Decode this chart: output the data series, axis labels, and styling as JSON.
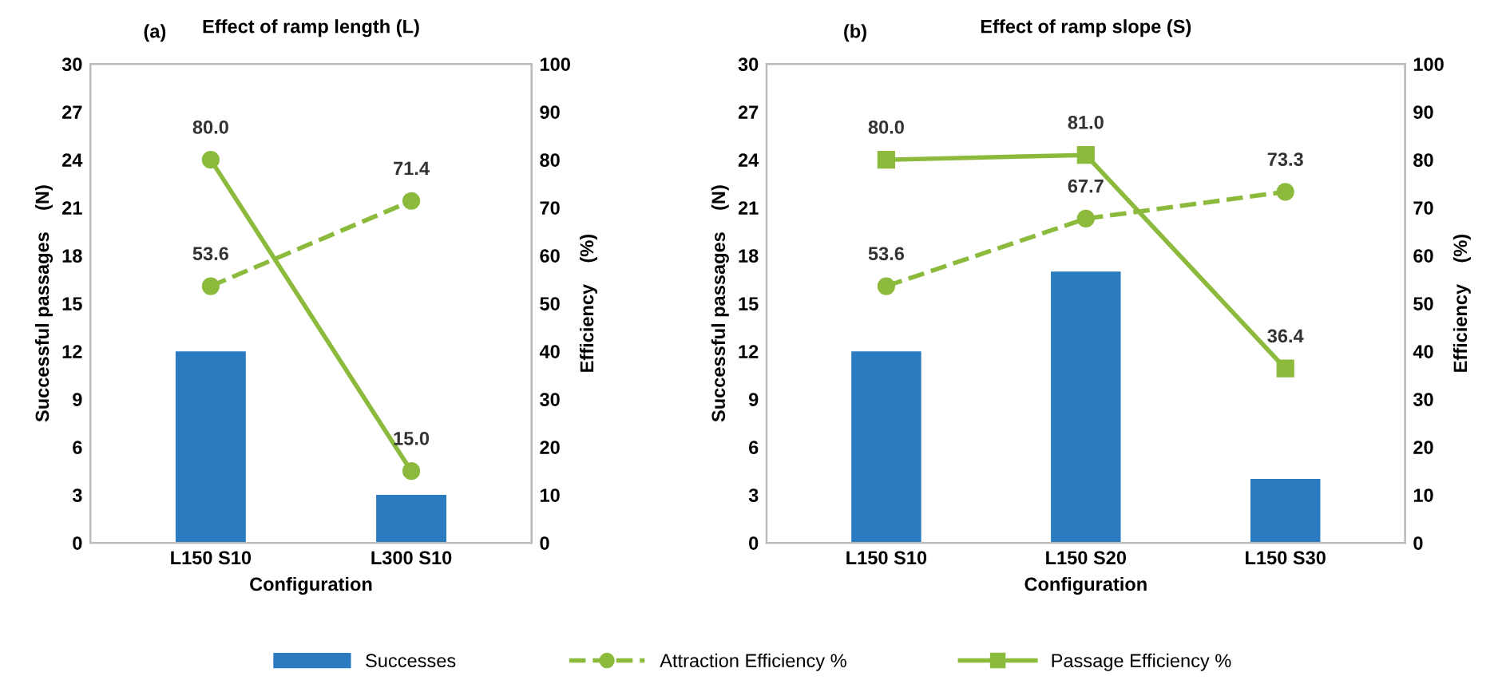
{
  "chart_data": [
    {
      "type": "bar",
      "title": "Effect of ramp length (L)",
      "annotations": [
        "(a)"
      ],
      "xlabel": "Configuration",
      "ylabel": "Successful passages    (N)",
      "y2label": "Efficiency    (%)",
      "categories": [
        "L150 S10",
        "L300 S10"
      ],
      "series": [
        {
          "color": "#2b7bc0",
          "values": [
            12,
            3
          ]
        },
        {
          "type": "line",
          "axis": "y2",
          "color": "#8cba3c",
          "line_style": "dashed",
          "marker": "circle",
          "values": [
            53.6,
            71.4
          ],
          "value_labels": [
            "53.6",
            "71.4"
          ]
        },
        {
          "type": "line",
          "axis": "y2",
          "color": "#8cba3c",
          "line_style": "solid",
          "marker": "circle",
          "values": [
            80.0,
            15.0
          ],
          "value_labels": [
            "80.0",
            "15.0"
          ]
        }
      ],
      "ylim": [
        0,
        30
      ],
      "yticks": [
        0,
        3,
        6,
        9,
        12,
        15,
        18,
        21,
        24,
        27,
        30
      ],
      "y2lim": [
        0,
        100
      ],
      "y2ticks": [
        0,
        10,
        20,
        30,
        40,
        50,
        60,
        70,
        80,
        90,
        100
      ],
      "grid": false,
      "legend": false
    },
    {
      "type": "bar",
      "title": "Effect of ramp slope (S)",
      "annotations": [
        "(b)"
      ],
      "xlabel": "Configuration",
      "ylabel": "Successful passages    (N)",
      "y2label": "Efficiency    (%)",
      "categories": [
        "L150 S10",
        "L150 S20",
        "L150 S30"
      ],
      "series": [
        {
          "name": "Successes",
          "color": "#2b7bc0",
          "values": [
            12,
            17,
            4
          ]
        },
        {
          "type": "line",
          "axis": "y2",
          "name": "Attraction Efficiency %",
          "color": "#8cba3c",
          "line_style": "dashed",
          "marker": "circle",
          "values": [
            53.6,
            67.7,
            73.3
          ],
          "value_labels": [
            "53.6",
            "67.7",
            "73.3"
          ]
        },
        {
          "type": "line",
          "axis": "y2",
          "name": "Passage Efficiency %",
          "color": "#8cba3c",
          "line_style": "solid",
          "marker": "square",
          "values": [
            80.0,
            81.0,
            36.4
          ],
          "value_labels": [
            "80.0",
            "81.0",
            "36.4"
          ]
        }
      ],
      "ylim": [
        0,
        30
      ],
      "yticks": [
        0,
        3,
        6,
        9,
        12,
        15,
        18,
        21,
        24,
        27,
        30
      ],
      "y2lim": [
        0,
        100
      ],
      "y2ticks": [
        0,
        10,
        20,
        30,
        40,
        50,
        60,
        70,
        80,
        90,
        100
      ],
      "grid": false,
      "legend": "bottom"
    }
  ]
}
